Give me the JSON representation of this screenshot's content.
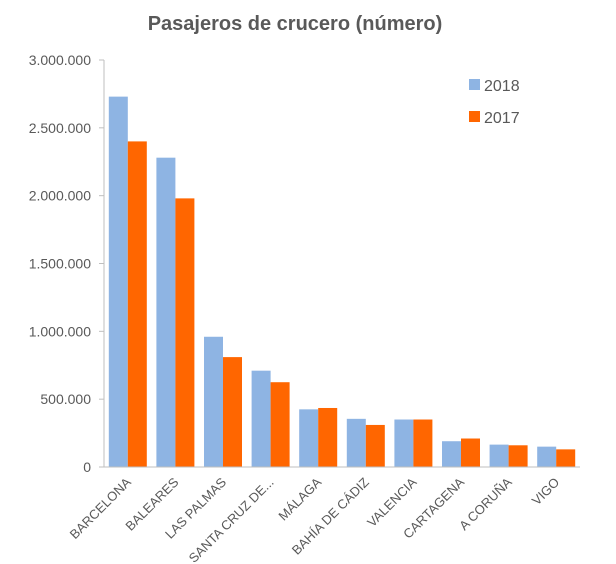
{
  "chart_data": {
    "type": "bar",
    "title": "Pasajeros de crucero (número)",
    "xlabel": "",
    "ylabel": "",
    "ylim": [
      0,
      3000000
    ],
    "yticks": [
      0,
      500000,
      1000000,
      1500000,
      2000000,
      2500000,
      3000000
    ],
    "ytick_labels": [
      "0",
      "500.000",
      "1.000.000",
      "1.500.000",
      "2.000.000",
      "2.500.000",
      "3.000.000"
    ],
    "grid": false,
    "legend_position": "top-right",
    "categories": [
      "BARCELONA",
      "BALEARES",
      "LAS PALMAS",
      "SANTA CRUZ DE...",
      "MÁLAGA",
      "BAHÍA DE CÁDIZ",
      "VALENCIA",
      "CARTAGENA",
      "A CORUÑA",
      "VIGO"
    ],
    "series": [
      {
        "name": "2018",
        "color": "#8EB4E3",
        "values": [
          2730000,
          2280000,
          960000,
          710000,
          425000,
          355000,
          350000,
          190000,
          165000,
          150000
        ]
      },
      {
        "name": "2017",
        "color": "#FF6600",
        "values": [
          2400000,
          1980000,
          810000,
          625000,
          435000,
          310000,
          350000,
          210000,
          160000,
          130000
        ]
      }
    ]
  }
}
